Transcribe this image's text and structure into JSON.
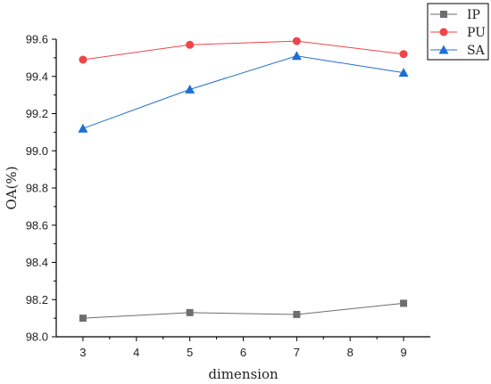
{
  "chart_data": {
    "type": "line",
    "title": "",
    "xlabel": "dimension",
    "ylabel": "OA(%)",
    "x": [
      3,
      5,
      7,
      9
    ],
    "xlim": [
      2.5,
      9.5
    ],
    "ylim": [
      98.0,
      99.6
    ],
    "x_ticks": [
      3,
      4,
      5,
      6,
      7,
      8,
      9
    ],
    "x_tick_labels": [
      "3",
      "4",
      "5",
      "6",
      "7",
      "8",
      "9"
    ],
    "y_ticks": [
      98.0,
      98.2,
      98.4,
      98.6,
      98.8,
      99.0,
      99.2,
      99.4,
      99.6
    ],
    "y_tick_labels": [
      "98.0",
      "98.2",
      "98.4",
      "98.6",
      "98.8",
      "99.0",
      "99.2",
      "99.4",
      "99.6"
    ],
    "grid": false,
    "legend_position": "top-right",
    "series": [
      {
        "name": "IP",
        "values": [
          98.1,
          98.13,
          98.12,
          98.18
        ],
        "color": "#6e6e6e",
        "marker": "square"
      },
      {
        "name": "PU",
        "values": [
          99.49,
          99.57,
          99.59,
          99.52
        ],
        "color": "#f0444a",
        "marker": "circle"
      },
      {
        "name": "SA",
        "values": [
          99.12,
          99.33,
          99.51,
          99.42
        ],
        "color": "#1f6fd1",
        "marker": "triangle"
      }
    ]
  }
}
